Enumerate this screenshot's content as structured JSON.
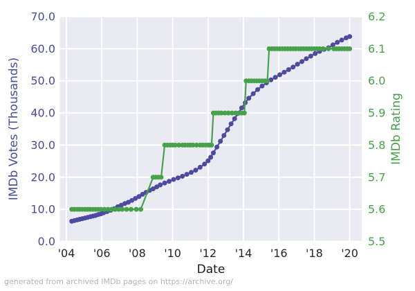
{
  "page": {
    "footer": "generated from archived IMDb pages on https://archive.org/"
  },
  "colors": {
    "plot_background": "#eaeaf2",
    "gridline": "#ffffff",
    "votes_purple": "#4c4b9d",
    "rating_green": "#46a14a",
    "x_tick_text": "#262626",
    "footer_text": "#b4b4b8"
  },
  "chart_data": {
    "type": "line",
    "title": "",
    "xlabel": "Date",
    "grid": true,
    "legend": false,
    "x_axis": {
      "range": [
        2003.9,
        2020.75
      ],
      "tick_values": [
        2004,
        2006,
        2008,
        2010,
        2012,
        2014,
        2016,
        2018,
        2020
      ],
      "tick_labels": [
        "'04",
        "'06",
        "'08",
        "'10",
        "'12",
        "'14",
        "'16",
        "'18",
        "'20"
      ]
    },
    "axes": {
      "left": {
        "label": "IMDb Votes (Thousands)",
        "color": "#4c4b9d",
        "range": [
          0,
          70
        ],
        "tick_values": [
          0,
          10,
          20,
          30,
          40,
          50,
          60,
          70
        ],
        "tick_labels": [
          "0.0",
          "10.0",
          "20.0",
          "30.0",
          "40.0",
          "50.0",
          "60.0",
          "70.0"
        ]
      },
      "right": {
        "label": "IMDb Rating",
        "color": "#46a14a",
        "range": [
          5.5,
          6.2
        ],
        "tick_values": [
          5.5,
          5.6,
          5.7,
          5.8,
          5.9,
          6.0,
          6.1,
          6.2
        ],
        "tick_labels": [
          "5.5",
          "5.6",
          "5.7",
          "5.8",
          "5.9",
          "6.0",
          "6.1",
          "6.2"
        ]
      }
    },
    "series": [
      {
        "name": "IMDb Votes (Thousands)",
        "axis": "left",
        "color": "#4c4b9d",
        "marker": "circle",
        "points": [
          [
            2004.3,
            6.3
          ],
          [
            2004.45,
            6.5
          ],
          [
            2004.6,
            6.7
          ],
          [
            2004.75,
            6.9
          ],
          [
            2004.9,
            7.1
          ],
          [
            2005.05,
            7.3
          ],
          [
            2005.2,
            7.5
          ],
          [
            2005.35,
            7.7
          ],
          [
            2005.5,
            7.9
          ],
          [
            2005.65,
            8.1
          ],
          [
            2005.8,
            8.4
          ],
          [
            2005.95,
            8.6
          ],
          [
            2006.1,
            8.9
          ],
          [
            2006.3,
            9.3
          ],
          [
            2006.5,
            9.7
          ],
          [
            2006.7,
            10.2
          ],
          [
            2006.9,
            10.8
          ],
          [
            2007.1,
            11.3
          ],
          [
            2007.3,
            11.8
          ],
          [
            2007.5,
            12.2
          ],
          [
            2007.7,
            12.8
          ],
          [
            2007.9,
            13.4
          ],
          [
            2008.1,
            14.0
          ],
          [
            2008.3,
            14.7
          ],
          [
            2008.5,
            15.3
          ],
          [
            2008.7,
            15.9
          ],
          [
            2008.9,
            16.4
          ],
          [
            2009.1,
            17.0
          ],
          [
            2009.3,
            17.6
          ],
          [
            2009.55,
            18.2
          ],
          [
            2009.8,
            18.7
          ],
          [
            2010.05,
            19.3
          ],
          [
            2010.3,
            19.8
          ],
          [
            2010.55,
            20.3
          ],
          [
            2010.8,
            20.9
          ],
          [
            2011.05,
            21.5
          ],
          [
            2011.3,
            22.2
          ],
          [
            2011.55,
            23.1
          ],
          [
            2011.8,
            24.1
          ],
          [
            2012.0,
            25.1
          ],
          [
            2012.15,
            26.2
          ],
          [
            2012.3,
            27.6
          ],
          [
            2012.5,
            29.4
          ],
          [
            2012.7,
            31.2
          ],
          [
            2012.9,
            33.0
          ],
          [
            2013.1,
            34.8
          ],
          [
            2013.3,
            36.6
          ],
          [
            2013.5,
            38.2
          ],
          [
            2013.7,
            39.9
          ],
          [
            2013.9,
            41.6
          ],
          [
            2014.1,
            43.2
          ],
          [
            2014.3,
            44.6
          ],
          [
            2014.55,
            46.0
          ],
          [
            2014.8,
            47.3
          ],
          [
            2015.05,
            48.4
          ],
          [
            2015.3,
            49.4
          ],
          [
            2015.55,
            50.3
          ],
          [
            2015.8,
            51.1
          ],
          [
            2016.05,
            51.9
          ],
          [
            2016.3,
            52.7
          ],
          [
            2016.55,
            53.5
          ],
          [
            2016.8,
            54.3
          ],
          [
            2017.05,
            55.2
          ],
          [
            2017.3,
            56.0
          ],
          [
            2017.55,
            56.9
          ],
          [
            2017.8,
            57.7
          ],
          [
            2018.05,
            58.5
          ],
          [
            2018.3,
            59.2
          ],
          [
            2018.55,
            59.8
          ],
          [
            2018.8,
            60.3
          ],
          [
            2019.05,
            61.2
          ],
          [
            2019.3,
            62.0
          ],
          [
            2019.55,
            62.7
          ],
          [
            2019.8,
            63.4
          ],
          [
            2020.0,
            63.8
          ]
        ]
      },
      {
        "name": "IMDb Rating",
        "axis": "right",
        "color": "#46a14a",
        "marker": "circle",
        "points": [
          [
            2004.3,
            5.6
          ],
          [
            2004.45,
            5.6
          ],
          [
            2004.6,
            5.6
          ],
          [
            2004.75,
            5.6
          ],
          [
            2004.9,
            5.6
          ],
          [
            2005.05,
            5.6
          ],
          [
            2005.2,
            5.6
          ],
          [
            2005.35,
            5.6
          ],
          [
            2005.5,
            5.6
          ],
          [
            2005.65,
            5.6
          ],
          [
            2005.8,
            5.6
          ],
          [
            2005.95,
            5.6
          ],
          [
            2006.15,
            5.6
          ],
          [
            2006.35,
            5.6
          ],
          [
            2006.55,
            5.6
          ],
          [
            2006.75,
            5.6
          ],
          [
            2006.95,
            5.6
          ],
          [
            2007.15,
            5.6
          ],
          [
            2007.4,
            5.6
          ],
          [
            2007.65,
            5.6
          ],
          [
            2007.95,
            5.6
          ],
          [
            2008.2,
            5.6
          ],
          [
            2008.9,
            5.7
          ],
          [
            2009.05,
            5.7
          ],
          [
            2009.2,
            5.7
          ],
          [
            2009.35,
            5.7
          ],
          [
            2009.55,
            5.8
          ],
          [
            2009.7,
            5.8
          ],
          [
            2009.85,
            5.8
          ],
          [
            2010.0,
            5.8
          ],
          [
            2010.15,
            5.8
          ],
          [
            2010.35,
            5.8
          ],
          [
            2010.55,
            5.8
          ],
          [
            2010.7,
            5.8
          ],
          [
            2010.85,
            5.8
          ],
          [
            2011.0,
            5.8
          ],
          [
            2011.15,
            5.8
          ],
          [
            2011.35,
            5.8
          ],
          [
            2011.55,
            5.8
          ],
          [
            2011.7,
            5.8
          ],
          [
            2011.85,
            5.8
          ],
          [
            2012.0,
            5.8
          ],
          [
            2012.1,
            5.8
          ],
          [
            2012.2,
            5.8
          ],
          [
            2012.3,
            5.9
          ],
          [
            2012.45,
            5.9
          ],
          [
            2012.6,
            5.9
          ],
          [
            2012.75,
            5.9
          ],
          [
            2012.95,
            5.9
          ],
          [
            2013.15,
            5.9
          ],
          [
            2013.35,
            5.9
          ],
          [
            2013.55,
            5.9
          ],
          [
            2013.75,
            5.9
          ],
          [
            2013.9,
            5.9
          ],
          [
            2014.05,
            5.9
          ],
          [
            2014.15,
            6.0
          ],
          [
            2014.3,
            6.0
          ],
          [
            2014.45,
            6.0
          ],
          [
            2014.6,
            6.0
          ],
          [
            2014.75,
            6.0
          ],
          [
            2014.9,
            6.0
          ],
          [
            2015.05,
            6.0
          ],
          [
            2015.2,
            6.0
          ],
          [
            2015.35,
            6.0
          ],
          [
            2015.45,
            6.1
          ],
          [
            2015.6,
            6.1
          ],
          [
            2015.75,
            6.1
          ],
          [
            2015.9,
            6.1
          ],
          [
            2016.05,
            6.1
          ],
          [
            2016.2,
            6.1
          ],
          [
            2016.35,
            6.1
          ],
          [
            2016.5,
            6.1
          ],
          [
            2016.65,
            6.1
          ],
          [
            2016.8,
            6.1
          ],
          [
            2016.95,
            6.1
          ],
          [
            2017.1,
            6.1
          ],
          [
            2017.25,
            6.1
          ],
          [
            2017.4,
            6.1
          ],
          [
            2017.55,
            6.1
          ],
          [
            2017.7,
            6.1
          ],
          [
            2017.85,
            6.1
          ],
          [
            2018.0,
            6.1
          ],
          [
            2018.15,
            6.1
          ],
          [
            2018.3,
            6.1
          ],
          [
            2018.5,
            6.1
          ],
          [
            2018.8,
            6.1
          ],
          [
            2019.1,
            6.1
          ],
          [
            2019.25,
            6.1
          ],
          [
            2019.4,
            6.1
          ],
          [
            2019.55,
            6.1
          ],
          [
            2019.7,
            6.1
          ],
          [
            2019.85,
            6.1
          ],
          [
            2020.0,
            6.1
          ]
        ]
      }
    ]
  }
}
